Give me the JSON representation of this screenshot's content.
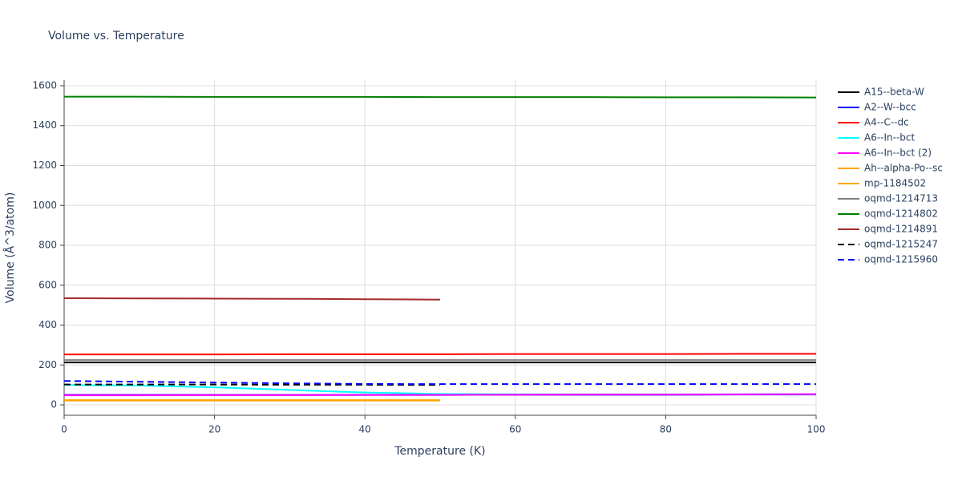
{
  "chart_data": {
    "type": "line",
    "title": "Volume vs. Temperature",
    "x_label": "Temperature (K)",
    "y_label": "Volume (Å^3/atom)",
    "x": [
      0,
      10,
      20,
      30,
      40,
      50,
      60,
      70,
      80,
      90,
      100
    ],
    "xlim": [
      0,
      100
    ],
    "xticks": [
      0,
      20,
      40,
      60,
      80,
      100
    ],
    "ylim": [
      -52,
      1628
    ],
    "yticks": [
      0,
      200,
      400,
      600,
      800,
      1000,
      1200,
      1400,
      1600
    ],
    "grid": true,
    "legend": "right",
    "series": [
      {
        "name": "A15--beta-W",
        "color": "#000000",
        "values": [
          213,
          213,
          213,
          213,
          213,
          213,
          213,
          213,
          213,
          213,
          213
        ]
      },
      {
        "name": "A2--W--bcc",
        "color": "#0000ff",
        "values": [
          50,
          50,
          50,
          50,
          50,
          50,
          51,
          51,
          51,
          52,
          52
        ]
      },
      {
        "name": "A4--C--dc",
        "color": "#ff0000",
        "values": [
          253,
          253,
          253,
          254,
          254,
          254,
          255,
          255,
          255,
          256,
          256
        ]
      },
      {
        "name": "A6--In--bct",
        "color": "#00ffff",
        "values": [
          100,
          97,
          88,
          75,
          62,
          55,
          53,
          53,
          53,
          53,
          53
        ]
      },
      {
        "name": "A6--In--bct (2)",
        "color": "#ff00ff",
        "values": [
          48,
          48,
          49,
          49,
          50,
          50,
          51,
          52,
          52,
          53,
          54
        ]
      },
      {
        "name": "Ah--alpha-Po--sc",
        "color": "#ffa500",
        "values": [
          24,
          24,
          24,
          24,
          24,
          24,
          null,
          null,
          null,
          null,
          null
        ]
      },
      {
        "name": "mp-1184502",
        "color": "#ffa500",
        "values": [
          22,
          22,
          22,
          22,
          22,
          22,
          null,
          null,
          null,
          null,
          null
        ]
      },
      {
        "name": "oqmd-1214713",
        "color": "#808080",
        "values": [
          225,
          225,
          225,
          225,
          225,
          225,
          225,
          225,
          225,
          225,
          225
        ]
      },
      {
        "name": "oqmd-1214802",
        "color": "#008000",
        "values": [
          1545,
          1545,
          1544,
          1544,
          1544,
          1543,
          1543,
          1543,
          1542,
          1542,
          1541
        ]
      },
      {
        "name": "oqmd-1214891",
        "color": "#a52a2a",
        "values": [
          535,
          534,
          533,
          532,
          530,
          528,
          null,
          null,
          null,
          null,
          null
        ]
      },
      {
        "name": "oqmd-1215247",
        "color": "#000000",
        "dash": true,
        "values": [
          102,
          102,
          102,
          101,
          101,
          100,
          null,
          null,
          null,
          null,
          null
        ]
      },
      {
        "name": "oqmd-1215960",
        "color": "#0000ff",
        "dash": true,
        "values": [
          120,
          116,
          112,
          108,
          105,
          104,
          104,
          104,
          104,
          104,
          104
        ]
      }
    ]
  }
}
